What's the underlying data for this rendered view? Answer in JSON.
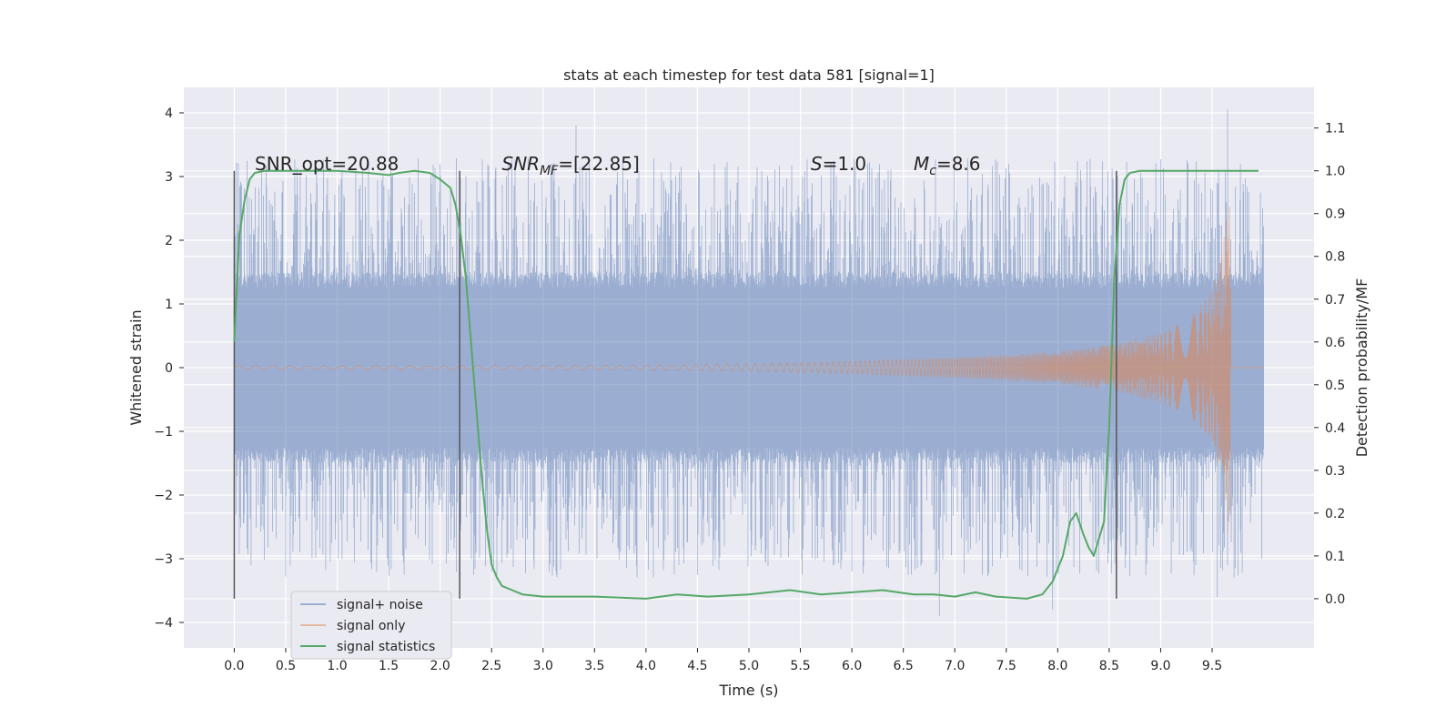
{
  "chart_data": {
    "type": "line",
    "title": "stats at each timestep for test data 581 [signal=1]",
    "xlabel": "Time (s)",
    "ylabel": "Whitened strain",
    "y2label": "Detection probability/MF",
    "xlim": [
      -0.49,
      10.49
    ],
    "ylim": [
      -4.4,
      4.4
    ],
    "y2lim": [
      -0.115,
      1.195
    ],
    "x_ticks": [
      0.0,
      0.5,
      1.0,
      1.5,
      2.0,
      2.5,
      3.0,
      3.5,
      4.0,
      4.5,
      5.0,
      5.5,
      6.0,
      6.5,
      7.0,
      7.5,
      8.0,
      8.5,
      9.0,
      9.5
    ],
    "x_tick_labels": [
      "0.0",
      "0.5",
      "1.0",
      "1.5",
      "2.0",
      "2.5",
      "3.0",
      "3.5",
      "4.0",
      "4.5",
      "5.0",
      "5.5",
      "6.0",
      "6.5",
      "7.0",
      "7.5",
      "8.0",
      "8.5",
      "9.0",
      "9.5"
    ],
    "y_ticks": [
      4,
      3,
      2,
      1,
      0,
      -1,
      -2,
      -3,
      -4
    ],
    "y_tick_labels": [
      "4",
      "3",
      "2",
      "1",
      "0",
      "−1",
      "−2",
      "−3",
      "−4"
    ],
    "y2_ticks": [
      1.1,
      1.0,
      0.9,
      0.8,
      0.7,
      0.6,
      0.5,
      0.4,
      0.3,
      0.2,
      0.1,
      0.0
    ],
    "y2_tick_labels": [
      "1.1",
      "1.0",
      "0.9",
      "0.8",
      "0.7",
      "0.6",
      "0.5",
      "0.4",
      "0.3",
      "0.2",
      "0.1",
      "0.0"
    ],
    "grid": true,
    "legend_position": "lower-left",
    "series": [
      {
        "name": "signal+ noise",
        "axis": "left",
        "color": "#4c72b0",
        "style": "dense noisy strain trace, approximately symmetric about 0, bulk amplitude about ±1.3, peaks reaching about 3.8 at 3.3 s and 4.0 at 9.65 s, lows near -3.9 at 6.85 s",
        "x_range": [
          0.0,
          10.0
        ]
      },
      {
        "name": "signal only",
        "axis": "left",
        "color": "#dd8452",
        "envelope": {
          "x": [
            0.0,
            2.0,
            4.0,
            5.0,
            6.0,
            7.0,
            7.5,
            8.0,
            8.5,
            9.0,
            9.3,
            9.5,
            9.6,
            9.65,
            9.68
          ],
          "amplitude": [
            0.03,
            0.03,
            0.04,
            0.06,
            0.1,
            0.16,
            0.2,
            0.26,
            0.36,
            0.55,
            0.8,
            1.2,
            1.8,
            2.6,
            2.6
          ]
        }
      },
      {
        "name": "signal statistics",
        "axis": "right",
        "color": "#55a868",
        "x": [
          0.0,
          0.05,
          0.1,
          0.15,
          0.2,
          0.3,
          0.5,
          1.0,
          1.3,
          1.5,
          1.6,
          1.75,
          1.9,
          2.0,
          2.1,
          2.15,
          2.2,
          2.25,
          2.3,
          2.35,
          2.4,
          2.45,
          2.5,
          2.55,
          2.6,
          2.7,
          2.8,
          3.0,
          3.5,
          4.0,
          4.3,
          4.6,
          5.0,
          5.4,
          5.7,
          6.0,
          6.3,
          6.6,
          6.8,
          7.0,
          7.2,
          7.4,
          7.7,
          7.85,
          7.95,
          8.05,
          8.12,
          8.18,
          8.25,
          8.3,
          8.35,
          8.45,
          8.5,
          8.55,
          8.6,
          8.65,
          8.7,
          8.8,
          9.0,
          9.5,
          9.95
        ],
        "values": [
          0.6,
          0.85,
          0.93,
          0.98,
          0.995,
          1.0,
          1.0,
          1.0,
          0.995,
          0.99,
          0.995,
          1.0,
          0.995,
          0.98,
          0.96,
          0.92,
          0.85,
          0.75,
          0.6,
          0.45,
          0.3,
          0.17,
          0.08,
          0.05,
          0.03,
          0.02,
          0.01,
          0.005,
          0.005,
          0.0,
          0.01,
          0.005,
          0.01,
          0.02,
          0.01,
          0.015,
          0.02,
          0.01,
          0.01,
          0.005,
          0.015,
          0.005,
          0.0,
          0.01,
          0.04,
          0.1,
          0.18,
          0.2,
          0.15,
          0.12,
          0.1,
          0.18,
          0.4,
          0.75,
          0.92,
          0.98,
          0.995,
          1.0,
          1.0,
          1.0,
          1.0
        ]
      }
    ],
    "vertical_markers": [
      0.0,
      2.19,
      8.57
    ],
    "annotations": [
      {
        "text": "SNR_opt=20.88",
        "x": 0.2,
        "y": 3.1
      },
      {
        "text": "SNR",
        "sub": "MF",
        "suffix": "=[22.85]",
        "italic": true,
        "x": 2.6,
        "y": 3.1
      },
      {
        "text": "S",
        "sub": "",
        "suffix": "=1.0",
        "italic": true,
        "x": 5.6,
        "y": 3.1
      },
      {
        "text": "M",
        "sub": "c",
        "suffix": "=8.6",
        "italic": true,
        "x": 6.6,
        "y": 3.1
      }
    ]
  }
}
